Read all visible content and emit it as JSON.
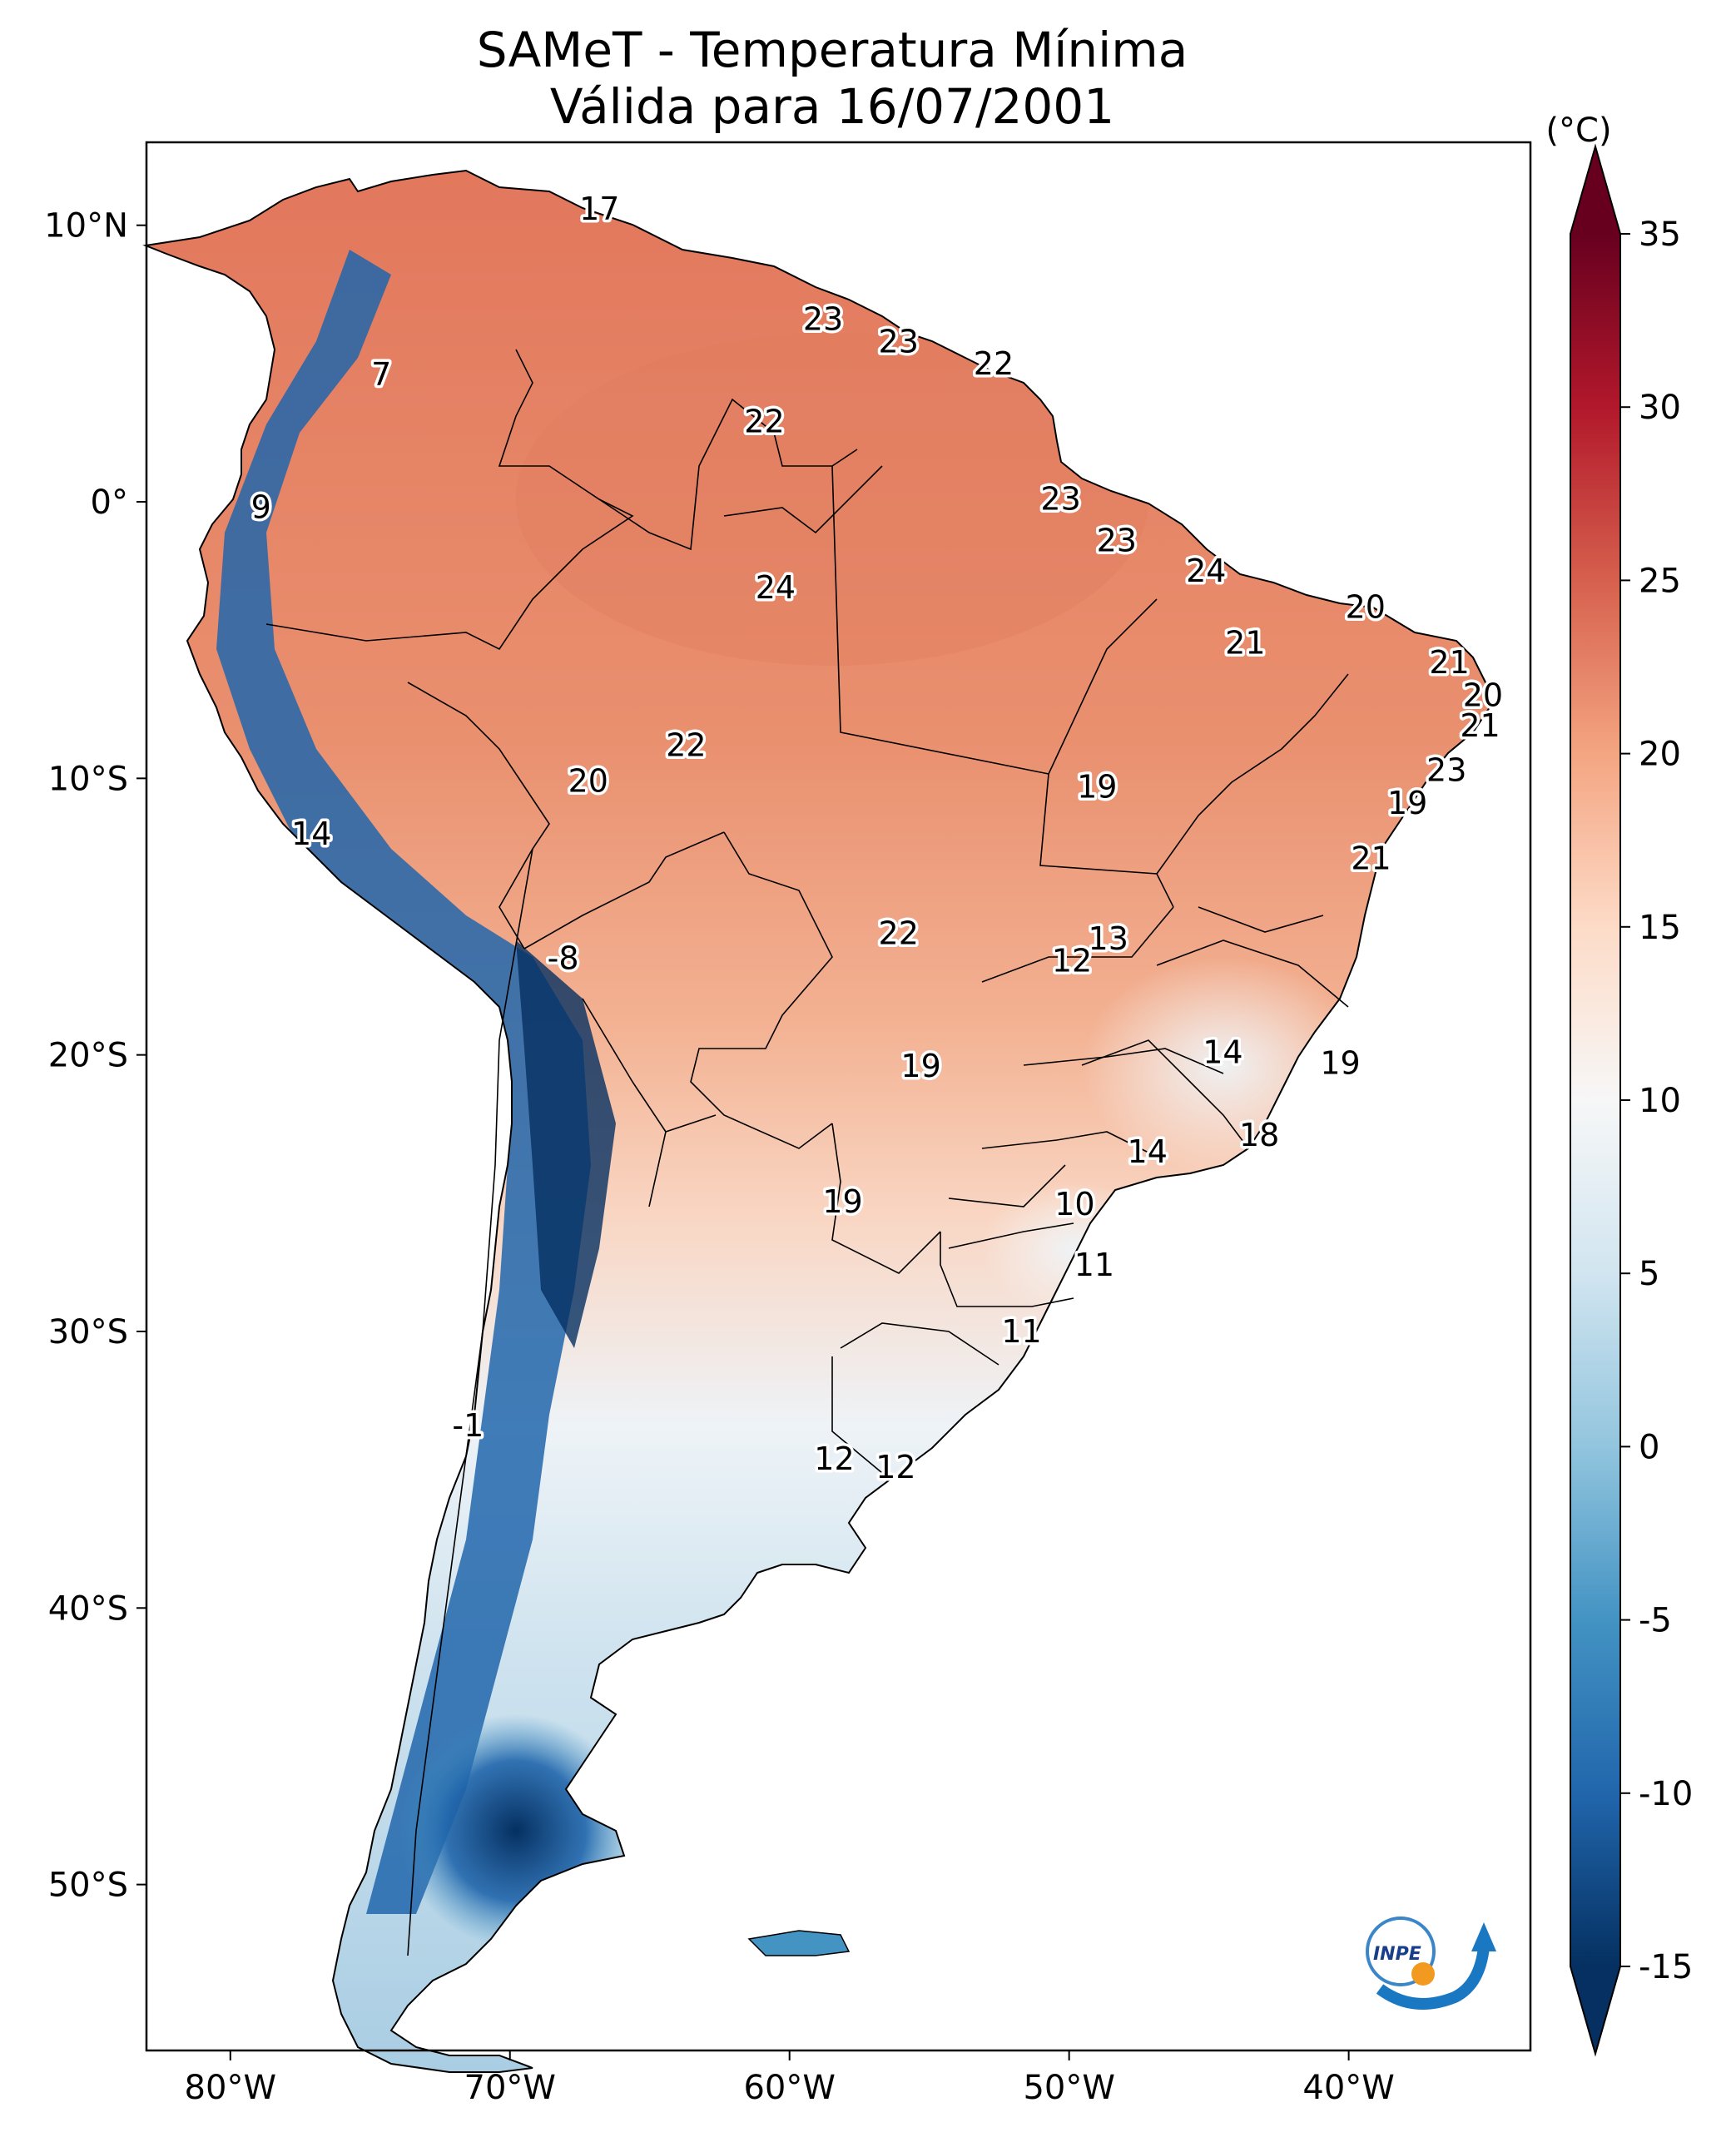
{
  "title": {
    "line1": "SAMeT - Temperatura Mínima",
    "line2": "Válida para 16/07/2001"
  },
  "axes": {
    "lon_ticks": [
      {
        "value": -80,
        "label": "80°W"
      },
      {
        "value": -70,
        "label": "70°W"
      },
      {
        "value": -60,
        "label": "60°W"
      },
      {
        "value": -50,
        "label": "50°W"
      },
      {
        "value": -40,
        "label": "40°W"
      }
    ],
    "lat_ticks": [
      {
        "value": 10,
        "label": "10°N"
      },
      {
        "value": 0,
        "label": "0°"
      },
      {
        "value": -10,
        "label": "10°S"
      },
      {
        "value": -20,
        "label": "20°S"
      },
      {
        "value": -30,
        "label": "30°S"
      },
      {
        "value": -40,
        "label": "40°S"
      },
      {
        "value": -50,
        "label": "50°S"
      }
    ]
  },
  "colorbar": {
    "unit": "(°C)",
    "min": -15,
    "max": 35,
    "ticks": [
      {
        "value": 35,
        "label": "35"
      },
      {
        "value": 30,
        "label": "30"
      },
      {
        "value": 25,
        "label": "25"
      },
      {
        "value": 20,
        "label": "20"
      },
      {
        "value": 15,
        "label": "15"
      },
      {
        "value": 10,
        "label": "10"
      },
      {
        "value": 5,
        "label": "5"
      },
      {
        "value": 0,
        "label": "0"
      },
      {
        "value": -5,
        "label": "-5"
      },
      {
        "value": -10,
        "label": "-10"
      },
      {
        "value": -15,
        "label": "-15"
      }
    ],
    "colors": [
      "#053061",
      "#2166ac",
      "#4393c3",
      "#92c5de",
      "#d1e5f0",
      "#f7f7f7",
      "#fddbc7",
      "#f4a582",
      "#d6604d",
      "#b2182b",
      "#67001f"
    ]
  },
  "colors": {
    "cold": "#1a5a9c",
    "cool": "#d1e5f0",
    "mild": "#f7c8b0",
    "warm": "#e98a6c",
    "hot": "#d6604d"
  },
  "chart_data": {
    "type": "map",
    "title": "SAMeT - Temperatura Mínima Válida para 16/07/2001",
    "colorbar_label": "(°C)",
    "xlim": [
      -83,
      -33.5
    ],
    "ylim": [
      -56,
      13
    ],
    "station_labels": [
      {
        "text": "17",
        "lon": -66.8,
        "lat": 10.6
      },
      {
        "text": "7",
        "lon": -74.6,
        "lat": 4.6
      },
      {
        "text": "9",
        "lon": -78.9,
        "lat": -0.2
      },
      {
        "text": "23",
        "lon": -58.8,
        "lat": 6.6
      },
      {
        "text": "23",
        "lon": -56.1,
        "lat": 5.8
      },
      {
        "text": "22",
        "lon": -52.7,
        "lat": 5.0
      },
      {
        "text": "22",
        "lon": -60.9,
        "lat": 2.9
      },
      {
        "text": "23",
        "lon": -50.3,
        "lat": 0.1
      },
      {
        "text": "23",
        "lon": -48.3,
        "lat": -1.4
      },
      {
        "text": "24",
        "lon": -60.5,
        "lat": -3.1
      },
      {
        "text": "24",
        "lon": -45.1,
        "lat": -2.5
      },
      {
        "text": "20",
        "lon": -39.4,
        "lat": -3.8
      },
      {
        "text": "21",
        "lon": -43.7,
        "lat": -5.1
      },
      {
        "text": "21",
        "lon": -36.4,
        "lat": -5.8
      },
      {
        "text": "20",
        "lon": -35.2,
        "lat": -7.0
      },
      {
        "text": "21",
        "lon": -35.3,
        "lat": -8.1
      },
      {
        "text": "23",
        "lon": -36.5,
        "lat": -9.7
      },
      {
        "text": "19",
        "lon": -37.9,
        "lat": -10.9
      },
      {
        "text": "21",
        "lon": -39.2,
        "lat": -12.9
      },
      {
        "text": "22",
        "lon": -63.7,
        "lat": -8.8
      },
      {
        "text": "20",
        "lon": -67.2,
        "lat": -10.1
      },
      {
        "text": "19",
        "lon": -49.0,
        "lat": -10.3
      },
      {
        "text": "14",
        "lon": -77.1,
        "lat": -12.0
      },
      {
        "text": "13",
        "lon": -48.6,
        "lat": -15.8
      },
      {
        "text": "12",
        "lon": -49.9,
        "lat": -16.6
      },
      {
        "text": "22",
        "lon": -56.1,
        "lat": -15.6
      },
      {
        "text": "-8",
        "lon": -68.1,
        "lat": -16.5
      },
      {
        "text": "14",
        "lon": -44.5,
        "lat": -19.9
      },
      {
        "text": "19",
        "lon": -40.3,
        "lat": -20.3
      },
      {
        "text": "19",
        "lon": -55.3,
        "lat": -20.4
      },
      {
        "text": "18",
        "lon": -43.2,
        "lat": -22.9
      },
      {
        "text": "14",
        "lon": -47.2,
        "lat": -23.5
      },
      {
        "text": "10",
        "lon": -49.8,
        "lat": -25.4
      },
      {
        "text": "19",
        "lon": -58.1,
        "lat": -25.3
      },
      {
        "text": "11",
        "lon": -49.1,
        "lat": -27.6
      },
      {
        "text": "11",
        "lon": -51.7,
        "lat": -30.0
      },
      {
        "text": "-1",
        "lon": -71.5,
        "lat": -33.4
      },
      {
        "text": "12",
        "lon": -58.4,
        "lat": -34.6
      },
      {
        "text": "12",
        "lon": -56.2,
        "lat": -34.9
      }
    ]
  },
  "logo": {
    "text": "INPE"
  }
}
